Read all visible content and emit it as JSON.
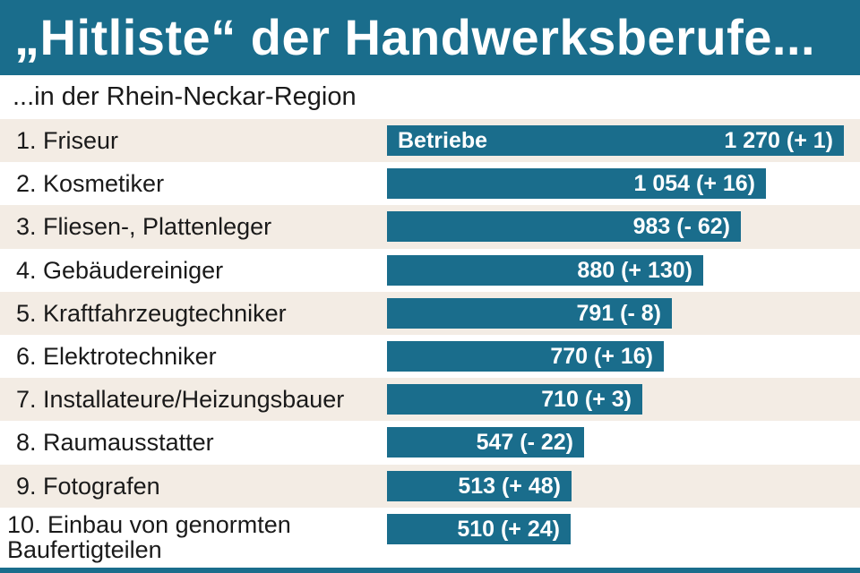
{
  "header": {
    "title": "„Hitliste“ der Handwerksberufe..."
  },
  "subtitle": "...in der Rhein-Neckar-Region",
  "colors": {
    "accent": "#1a6d8c",
    "stripe": "#f3ece4",
    "text": "#1a1a1a"
  },
  "chart_data": {
    "type": "bar",
    "orientation": "horizontal",
    "series_label": "Betriebe",
    "categories": [
      "1. Friseur",
      "2. Kosmetiker",
      "3. Fliesen-, Plattenleger",
      "4. Gebäudereiniger",
      "5. Kraftfahrzeugtechniker",
      "6. Elektrotechniker",
      "7. Installateure/Heizungsbauer",
      "8. Raumausstatter",
      "9. Fotografen",
      "10. Einbau von genormten Baufertigteilen"
    ],
    "values": [
      1270,
      1054,
      983,
      880,
      791,
      770,
      710,
      547,
      513,
      510
    ],
    "value_labels": [
      "1 270 (+ 1)",
      "1 054 (+ 16)",
      "983 (- 62)",
      "880 (+ 130)",
      "791 (- 8)",
      "770 (+ 16)",
      "710 (+ 3)",
      "547 (- 22)",
      "513 (+ 48)",
      "510 (+ 24)"
    ],
    "title": "„Hitliste“ der Handwerksberufe...",
    "subtitle": "...in der Rhein-Neckar-Region",
    "xlabel": "",
    "ylabel": "",
    "grid": false
  }
}
